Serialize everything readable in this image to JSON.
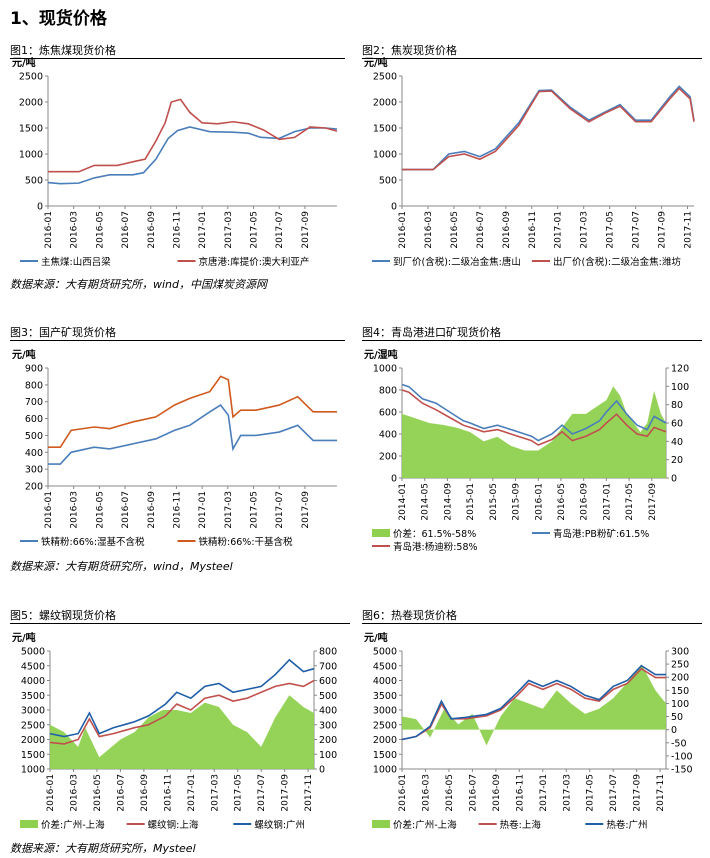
{
  "page_title": "1、现货价格",
  "sources": [
    "数据来源：大有期货研究所，wind，中国煤炭资源网",
    "数据来源：大有期货研究所，wind，Mysteel",
    "数据来源：大有期货研究所，Mysteel"
  ],
  "chart_data": [
    {
      "type": "line",
      "title": "图1：炼焦煤现货价格",
      "unit_left": "元/吨",
      "ylim": [
        0,
        2500
      ],
      "yticks": [
        0,
        500,
        1000,
        1500,
        2000,
        2500
      ],
      "x_ticks": [
        "2016-01",
        "2016-03",
        "2016-05",
        "2016-07",
        "2016-09",
        "2016-11",
        "2017-01",
        "2017-03",
        "2017-05",
        "2017-07",
        "2017-09"
      ],
      "x_range": [
        2016.0,
        2017.875
      ],
      "legend": "bottom",
      "series": [
        {
          "name": "主焦煤:山西吕梁",
          "color": "#4a7ebb",
          "x": [
            2016.0,
            2016.08,
            2016.2,
            2016.3,
            2016.4,
            2016.55,
            2016.62,
            2016.7,
            2016.78,
            2016.84,
            2016.92,
            2017.05,
            2017.2,
            2017.3,
            2017.38,
            2017.5,
            2017.6,
            2017.7,
            2017.8,
            2017.875
          ],
          "y": [
            450,
            430,
            440,
            540,
            600,
            600,
            640,
            900,
            1300,
            1450,
            1520,
            1430,
            1420,
            1400,
            1320,
            1300,
            1430,
            1500,
            1500,
            1480
          ]
        },
        {
          "name": "京唐港:库提价:澳大利亚产",
          "color": "#c0504d",
          "x": [
            2016.0,
            2016.2,
            2016.3,
            2016.45,
            2016.55,
            2016.63,
            2016.7,
            2016.76,
            2016.8,
            2016.86,
            2016.92,
            2017.0,
            2017.1,
            2017.2,
            2017.3,
            2017.4,
            2017.5,
            2017.6,
            2017.7,
            2017.8,
            2017.875
          ],
          "y": [
            660,
            660,
            780,
            780,
            850,
            900,
            1250,
            1600,
            2000,
            2050,
            1800,
            1600,
            1580,
            1620,
            1580,
            1460,
            1280,
            1320,
            1520,
            1500,
            1440
          ]
        }
      ]
    },
    {
      "type": "line",
      "title": "图2：焦炭现货价格",
      "unit_left": "元/吨",
      "ylim": [
        0,
        2500
      ],
      "yticks": [
        0,
        500,
        1000,
        1500,
        2000,
        2500
      ],
      "x_ticks": [
        "2016-01",
        "2016-03",
        "2016-05",
        "2016-07",
        "2016-09",
        "2016-11",
        "2017-01",
        "2017-03",
        "2017-05",
        "2017-07",
        "2017-09",
        "2017-11"
      ],
      "x_range": [
        2016.0,
        2017.875
      ],
      "legend": "bottom",
      "series": [
        {
          "name": "到厂价(含税):二级冶金焦:唐山",
          "color": "#4a7ebb",
          "x": [
            2016.0,
            2016.2,
            2016.3,
            2016.4,
            2016.5,
            2016.6,
            2016.75,
            2016.88,
            2016.96,
            2017.08,
            2017.2,
            2017.3,
            2017.4,
            2017.5,
            2017.6,
            2017.72,
            2017.78,
            2017.85,
            2017.875
          ],
          "y": [
            700,
            700,
            1000,
            1050,
            950,
            1100,
            1600,
            2220,
            2230,
            1900,
            1650,
            1800,
            1950,
            1650,
            1650,
            2100,
            2300,
            2100,
            1650
          ]
        },
        {
          "name": "出厂价(含税):二级冶金焦:潍坊",
          "color": "#c0504d",
          "x": [
            2016.0,
            2016.2,
            2016.3,
            2016.4,
            2016.5,
            2016.6,
            2016.75,
            2016.88,
            2016.96,
            2017.08,
            2017.2,
            2017.3,
            2017.4,
            2017.5,
            2017.6,
            2017.72,
            2017.78,
            2017.85,
            2017.875
          ],
          "y": [
            700,
            700,
            950,
            1000,
            900,
            1050,
            1550,
            2200,
            2210,
            1870,
            1620,
            1780,
            1920,
            1620,
            1620,
            2060,
            2260,
            2060,
            1620
          ]
        }
      ]
    },
    {
      "type": "line",
      "title": "图3：国产矿现货价格",
      "unit_left": "元/吨",
      "ylim": [
        200,
        900
      ],
      "yticks": [
        200,
        300,
        400,
        500,
        600,
        700,
        800,
        900
      ],
      "x_ticks": [
        "2016-01",
        "2016-03",
        "2016-05",
        "2016-07",
        "2016-09",
        "2016-11",
        "2017-01",
        "2017-03",
        "2017-05",
        "2017-07",
        "2017-09"
      ],
      "x_range": [
        2016.0,
        2017.875
      ],
      "legend": "bottom",
      "series": [
        {
          "name": "铁精粉:66%:湿基不含税",
          "color": "#4a7ebb",
          "x": [
            2016.0,
            2016.08,
            2016.15,
            2016.3,
            2016.4,
            2016.55,
            2016.7,
            2016.82,
            2016.92,
            2017.05,
            2017.12,
            2017.17,
            2017.2,
            2017.25,
            2017.35,
            2017.5,
            2017.62,
            2017.72,
            2017.875
          ],
          "y": [
            330,
            330,
            400,
            430,
            420,
            450,
            480,
            530,
            560,
            640,
            680,
            620,
            420,
            500,
            500,
            520,
            560,
            470,
            470
          ]
        },
        {
          "name": "铁精粉:66%:干基含税",
          "color": "#d05a1e",
          "x": [
            2016.0,
            2016.08,
            2016.15,
            2016.3,
            2016.4,
            2016.55,
            2016.7,
            2016.82,
            2016.92,
            2017.05,
            2017.12,
            2017.17,
            2017.2,
            2017.25,
            2017.35,
            2017.5,
            2017.62,
            2017.72,
            2017.875
          ],
          "y": [
            430,
            430,
            530,
            550,
            540,
            580,
            610,
            680,
            720,
            760,
            850,
            830,
            610,
            650,
            650,
            680,
            730,
            640,
            640
          ]
        }
      ]
    },
    {
      "type": "line",
      "title": "图4：青岛港进口矿现货价格",
      "unit_left": "元/湿吨",
      "ylim": [
        0,
        1000
      ],
      "yticks": [
        0,
        200,
        400,
        600,
        800,
        1000
      ],
      "ylim_right": [
        0,
        120
      ],
      "yticks_right": [
        0,
        20,
        40,
        60,
        80,
        100,
        120
      ],
      "x_ticks": [
        "2014-01",
        "2014-05",
        "2014-09",
        "2015-01",
        "2015-05",
        "2015-09",
        "2016-01",
        "2016-05",
        "2016-09",
        "2017-01",
        "2017-05",
        "2017-09"
      ],
      "x_range": [
        2014.0,
        2017.875
      ],
      "legend": "bottom",
      "bar_series": {
        "name": "价差：61.5%-58%",
        "color": "#8fd14f",
        "axis": "right",
        "x": [
          2014.0,
          2014.2,
          2014.4,
          2014.6,
          2014.8,
          2015.0,
          2015.2,
          2015.4,
          2015.6,
          2015.8,
          2016.0,
          2016.2,
          2016.4,
          2016.5,
          2016.7,
          2016.9,
          2017.0,
          2017.1,
          2017.2,
          2017.3,
          2017.4,
          2017.5,
          2017.6,
          2017.7,
          2017.8,
          2017.875
        ],
        "y": [
          70,
          65,
          60,
          58,
          55,
          50,
          40,
          45,
          35,
          30,
          30,
          40,
          60,
          70,
          70,
          80,
          85,
          100,
          90,
          70,
          60,
          50,
          60,
          95,
          70,
          60
        ]
      },
      "series": [
        {
          "name": "青岛港:PB粉矿:61.5%",
          "color": "#4a7ebb",
          "axis": "left",
          "x": [
            2014.0,
            2014.1,
            2014.3,
            2014.5,
            2014.7,
            2014.9,
            2015.0,
            2015.2,
            2015.4,
            2015.5,
            2015.7,
            2015.9,
            2016.0,
            2016.2,
            2016.35,
            2016.5,
            2016.7,
            2016.9,
            2017.0,
            2017.15,
            2017.3,
            2017.45,
            2017.6,
            2017.7,
            2017.875
          ],
          "y": [
            850,
            830,
            720,
            680,
            600,
            520,
            500,
            450,
            480,
            460,
            420,
            380,
            340,
            400,
            480,
            400,
            450,
            520,
            600,
            700,
            580,
            480,
            440,
            560,
            500
          ]
        },
        {
          "name": "青岛港:杨迪粉:58%",
          "color": "#c0504d",
          "axis": "left",
          "x": [
            2014.0,
            2014.1,
            2014.3,
            2014.5,
            2014.7,
            2014.9,
            2015.0,
            2015.2,
            2015.4,
            2015.5,
            2015.7,
            2015.9,
            2016.0,
            2016.2,
            2016.35,
            2016.5,
            2016.7,
            2016.9,
            2017.0,
            2017.15,
            2017.3,
            2017.45,
            2017.6,
            2017.7,
            2017.875
          ],
          "y": [
            800,
            780,
            680,
            620,
            550,
            480,
            460,
            420,
            440,
            420,
            380,
            340,
            300,
            350,
            420,
            340,
            380,
            440,
            500,
            580,
            480,
            400,
            380,
            460,
            420
          ]
        }
      ]
    },
    {
      "type": "line",
      "title": "图5：螺纹钢现货价格",
      "unit_left": "元/吨",
      "ylim": [
        1000,
        5000
      ],
      "yticks": [
        1000,
        1500,
        2000,
        2500,
        3000,
        3500,
        4000,
        4500,
        5000
      ],
      "ylim_right": [
        0,
        800
      ],
      "yticks_right": [
        0,
        100,
        200,
        300,
        400,
        500,
        600,
        700,
        800
      ],
      "x_ticks": [
        "2016-01",
        "2016-03",
        "2016-05",
        "2016-07",
        "2016-09",
        "2016-11",
        "2017-01",
        "2017-03",
        "2017-05",
        "2017-07",
        "2017-09",
        "2017-11"
      ],
      "x_range": [
        2016.0,
        2017.875
      ],
      "legend": "bottom",
      "bar_series": {
        "name": "价差:广州-上海",
        "color": "#8fd14f",
        "axis": "right",
        "x": [
          2016.0,
          2016.1,
          2016.2,
          2016.25,
          2016.35,
          2016.5,
          2016.6,
          2016.7,
          2016.8,
          2016.9,
          2017.0,
          2017.1,
          2017.2,
          2017.3,
          2017.4,
          2017.5,
          2017.6,
          2017.7,
          2017.8,
          2017.875
        ],
        "y": [
          300,
          250,
          150,
          280,
          80,
          200,
          250,
          350,
          400,
          400,
          380,
          450,
          420,
          300,
          250,
          150,
          350,
          500,
          420,
          380
        ]
      },
      "series": [
        {
          "name": "螺纹钢:上海",
          "color": "#c0504d",
          "axis": "left",
          "x": [
            2016.0,
            2016.1,
            2016.2,
            2016.28,
            2016.35,
            2016.45,
            2016.6,
            2016.7,
            2016.82,
            2016.9,
            2017.0,
            2017.1,
            2017.2,
            2017.3,
            2017.4,
            2017.5,
            2017.6,
            2017.7,
            2017.8,
            2017.875
          ],
          "y": [
            1900,
            1850,
            2000,
            2700,
            2100,
            2200,
            2400,
            2500,
            2800,
            3200,
            3000,
            3400,
            3500,
            3300,
            3400,
            3600,
            3800,
            3900,
            3800,
            4000
          ]
        },
        {
          "name": "螺纹钢:广州",
          "color": "#1f5ea8",
          "axis": "left",
          "x": [
            2016.0,
            2016.1,
            2016.2,
            2016.28,
            2016.35,
            2016.45,
            2016.6,
            2016.7,
            2016.82,
            2016.9,
            2017.0,
            2017.1,
            2017.2,
            2017.3,
            2017.4,
            2017.5,
            2017.6,
            2017.7,
            2017.8,
            2017.875
          ],
          "y": [
            2200,
            2100,
            2200,
            2900,
            2200,
            2400,
            2600,
            2800,
            3200,
            3600,
            3400,
            3800,
            3900,
            3600,
            3700,
            3800,
            4200,
            4700,
            4300,
            4400
          ]
        }
      ]
    },
    {
      "type": "line",
      "title": "图6：热卷现货价格",
      "unit_left": "元/吨",
      "ylim": [
        1000,
        5000
      ],
      "yticks": [
        1000,
        1500,
        2000,
        2500,
        3000,
        3500,
        4000,
        4500,
        5000
      ],
      "ylim_right": [
        -150,
        300
      ],
      "yticks_right": [
        -150,
        -100,
        -50,
        0,
        50,
        100,
        150,
        200,
        250,
        300
      ],
      "x_ticks": [
        "2016-01",
        "2016-03",
        "2016-05",
        "2016-07",
        "2016-09",
        "2016-11",
        "2017-01",
        "2017-03",
        "2017-05",
        "2017-07",
        "2017-09",
        "2017-11"
      ],
      "x_range": [
        2016.0,
        2017.875
      ],
      "legend": "bottom",
      "bar_series": {
        "name": "价差:广州-上海",
        "color": "#8fd14f",
        "axis": "right",
        "x": [
          2016.0,
          2016.1,
          2016.2,
          2016.3,
          2016.4,
          2016.5,
          2016.6,
          2016.7,
          2016.8,
          2016.9,
          2017.0,
          2017.1,
          2017.2,
          2017.3,
          2017.4,
          2017.5,
          2017.6,
          2017.7,
          2017.8,
          2017.875
        ],
        "y": [
          50,
          40,
          -30,
          80,
          20,
          60,
          -60,
          50,
          120,
          100,
          80,
          150,
          100,
          60,
          80,
          120,
          180,
          250,
          150,
          100
        ]
      },
      "series": [
        {
          "name": "热卷:上海",
          "color": "#c0504d",
          "axis": "left",
          "x": [
            2016.0,
            2016.1,
            2016.2,
            2016.28,
            2016.35,
            2016.45,
            2016.6,
            2016.7,
            2016.82,
            2016.9,
            2017.0,
            2017.1,
            2017.2,
            2017.3,
            2017.4,
            2017.5,
            2017.6,
            2017.7,
            2017.8,
            2017.875
          ],
          "y": [
            2000,
            2100,
            2400,
            3200,
            2700,
            2700,
            2800,
            3000,
            3500,
            3900,
            3700,
            3900,
            3700,
            3400,
            3300,
            3700,
            3900,
            4400,
            4100,
            4100
          ]
        },
        {
          "name": "热卷:广州",
          "color": "#1f5ea8",
          "axis": "left",
          "x": [
            2016.0,
            2016.1,
            2016.2,
            2016.28,
            2016.35,
            2016.45,
            2016.6,
            2016.7,
            2016.82,
            2016.9,
            2017.0,
            2017.1,
            2017.2,
            2017.3,
            2017.4,
            2017.5,
            2017.6,
            2017.7,
            2017.8,
            2017.875
          ],
          "y": [
            2000,
            2100,
            2450,
            3300,
            2700,
            2750,
            2850,
            3050,
            3600,
            4000,
            3800,
            4000,
            3800,
            3500,
            3350,
            3800,
            4000,
            4500,
            4200,
            4200
          ]
        }
      ]
    }
  ]
}
